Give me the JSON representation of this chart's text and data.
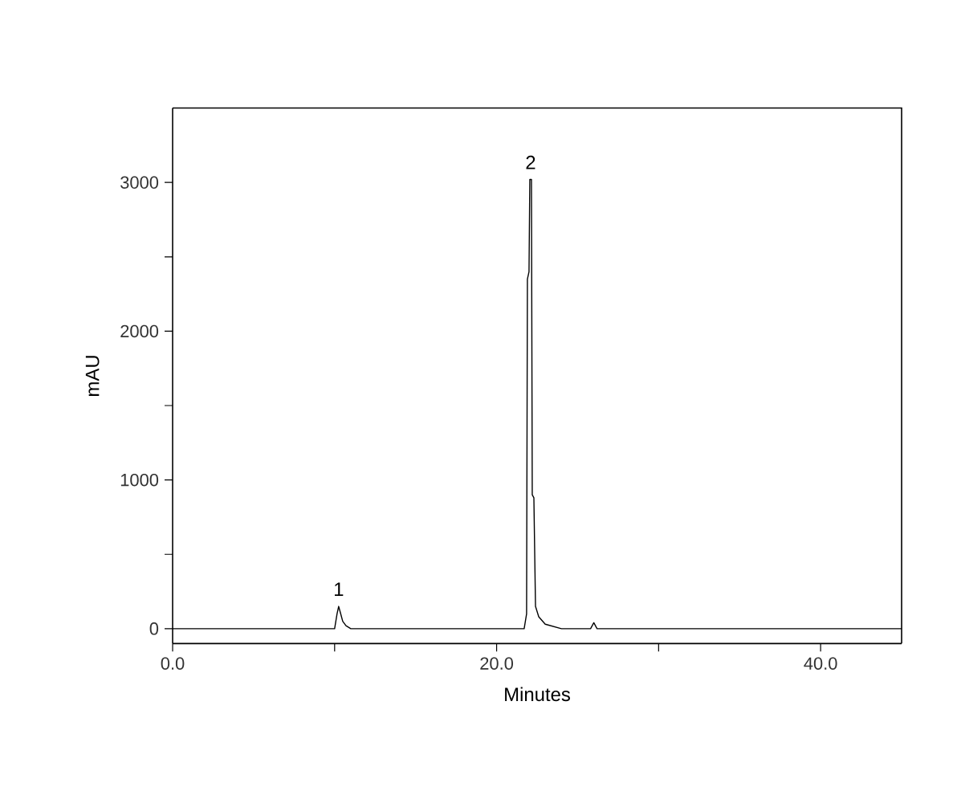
{
  "chart_data": {
    "type": "line",
    "xlabel": "Minutes",
    "ylabel": "mAU",
    "x": [
      0,
      10.0,
      10.15,
      10.25,
      10.35,
      10.5,
      10.7,
      11.0,
      12.0,
      21.7,
      21.85,
      21.9,
      22.0,
      22.05,
      22.15,
      22.2,
      22.3,
      22.4,
      22.6,
      23.0,
      24.0,
      25.8,
      26.0,
      26.2,
      45
    ],
    "series": [
      {
        "color": "#000000",
        "values": [
          0,
          0,
          100,
          150,
          110,
          50,
          20,
          0,
          0,
          0,
          100,
          2350,
          2400,
          3020,
          3020,
          900,
          880,
          150,
          80,
          30,
          0,
          0,
          40,
          0,
          0
        ]
      }
    ],
    "xlim": [
      0,
      45
    ],
    "ylim": [
      -100,
      3500
    ],
    "xticks": [
      {
        "value": 0,
        "label": "0.0"
      },
      {
        "value": 10,
        "label": null
      },
      {
        "value": 20,
        "label": "20.0"
      },
      {
        "value": 30,
        "label": null
      },
      {
        "value": 40,
        "label": "40.0"
      }
    ],
    "yticks": [
      0,
      {
        "value": 500,
        "label": null
      },
      1000,
      {
        "value": 1500,
        "label": null
      },
      2000,
      {
        "value": 2500,
        "label": null
      },
      3000
    ],
    "annotations": [
      {
        "text": "1",
        "x": 10.25,
        "y": 150
      },
      {
        "text": "2",
        "x": 22.1,
        "y": 3020
      }
    ],
    "grid": false,
    "marker": "none",
    "line_style": "solid"
  }
}
